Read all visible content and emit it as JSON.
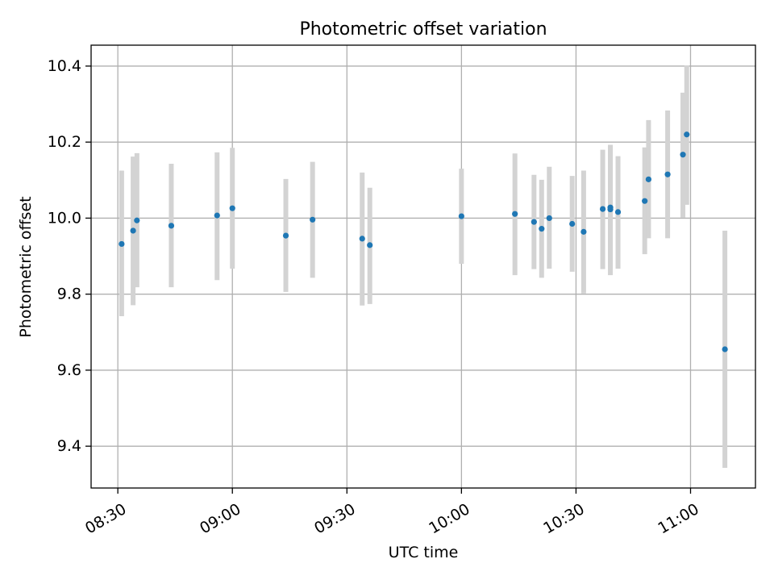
{
  "chart_data": {
    "type": "scatter",
    "title": "Photometric offset variation",
    "xlabel": "UTC time",
    "ylabel": "Photometric offset",
    "x_ticks": [
      "08:30",
      "09:00",
      "09:30",
      "10:00",
      "10:30",
      "11:00"
    ],
    "y_ticks": [
      "9.4",
      "9.6",
      "9.8",
      "10.0",
      "10.2",
      "10.4"
    ],
    "xlim": [
      "08:23",
      "11:17"
    ],
    "ylim": [
      9.29,
      10.455
    ],
    "grid": true,
    "marker_color": "#1f77b4",
    "errorbar_color": "#d3d3d3",
    "series": [
      {
        "points": [
          {
            "t": "08:31",
            "y": 9.932,
            "ylo": 9.742,
            "yhi": 10.125
          },
          {
            "t": "08:34",
            "y": 9.967,
            "ylo": 9.771,
            "yhi": 10.162
          },
          {
            "t": "08:35",
            "y": 9.994,
            "ylo": 9.818,
            "yhi": 10.171
          },
          {
            "t": "08:44",
            "y": 9.98,
            "ylo": 9.818,
            "yhi": 10.143
          },
          {
            "t": "08:56",
            "y": 10.007,
            "ylo": 9.837,
            "yhi": 10.173
          },
          {
            "t": "09:00",
            "y": 10.026,
            "ylo": 9.867,
            "yhi": 10.185
          },
          {
            "t": "09:14",
            "y": 9.954,
            "ylo": 9.806,
            "yhi": 10.103
          },
          {
            "t": "09:21",
            "y": 9.996,
            "ylo": 9.843,
            "yhi": 10.148
          },
          {
            "t": "09:34",
            "y": 9.946,
            "ylo": 9.77,
            "yhi": 10.12
          },
          {
            "t": "09:36",
            "y": 9.929,
            "ylo": 9.774,
            "yhi": 10.08
          },
          {
            "t": "10:00",
            "y": 10.005,
            "ylo": 9.88,
            "yhi": 10.13
          },
          {
            "t": "10:14",
            "y": 10.011,
            "ylo": 9.85,
            "yhi": 10.17
          },
          {
            "t": "10:19",
            "y": 9.99,
            "ylo": 9.866,
            "yhi": 10.114
          },
          {
            "t": "10:21",
            "y": 9.972,
            "ylo": 9.843,
            "yhi": 10.101
          },
          {
            "t": "10:23",
            "y": 10.0,
            "ylo": 9.867,
            "yhi": 10.135
          },
          {
            "t": "10:29",
            "y": 9.985,
            "ylo": 9.859,
            "yhi": 10.111
          },
          {
            "t": "10:32",
            "y": 9.964,
            "ylo": 9.802,
            "yhi": 10.125
          },
          {
            "t": "10:37",
            "y": 10.024,
            "ylo": 9.866,
            "yhi": 10.18
          },
          {
            "t": "10:39",
            "y": 10.023,
            "ylo": 9.85,
            "yhi": 10.193
          },
          {
            "t": "10:39",
            "y": 10.028,
            "ylo": 9.867,
            "yhi": 10.188
          },
          {
            "t": "10:41",
            "y": 10.016,
            "ylo": 9.867,
            "yhi": 10.163
          },
          {
            "t": "10:48",
            "y": 10.045,
            "ylo": 9.905,
            "yhi": 10.186
          },
          {
            "t": "10:49",
            "y": 10.102,
            "ylo": 9.947,
            "yhi": 10.258
          },
          {
            "t": "10:54",
            "y": 10.115,
            "ylo": 9.947,
            "yhi": 10.283
          },
          {
            "t": "10:58",
            "y": 10.167,
            "ylo": 10.001,
            "yhi": 10.33
          },
          {
            "t": "10:59",
            "y": 10.22,
            "ylo": 10.035,
            "yhi": 10.401
          },
          {
            "t": "11:09",
            "y": 9.655,
            "ylo": 9.343,
            "yhi": 9.967
          }
        ]
      }
    ]
  }
}
